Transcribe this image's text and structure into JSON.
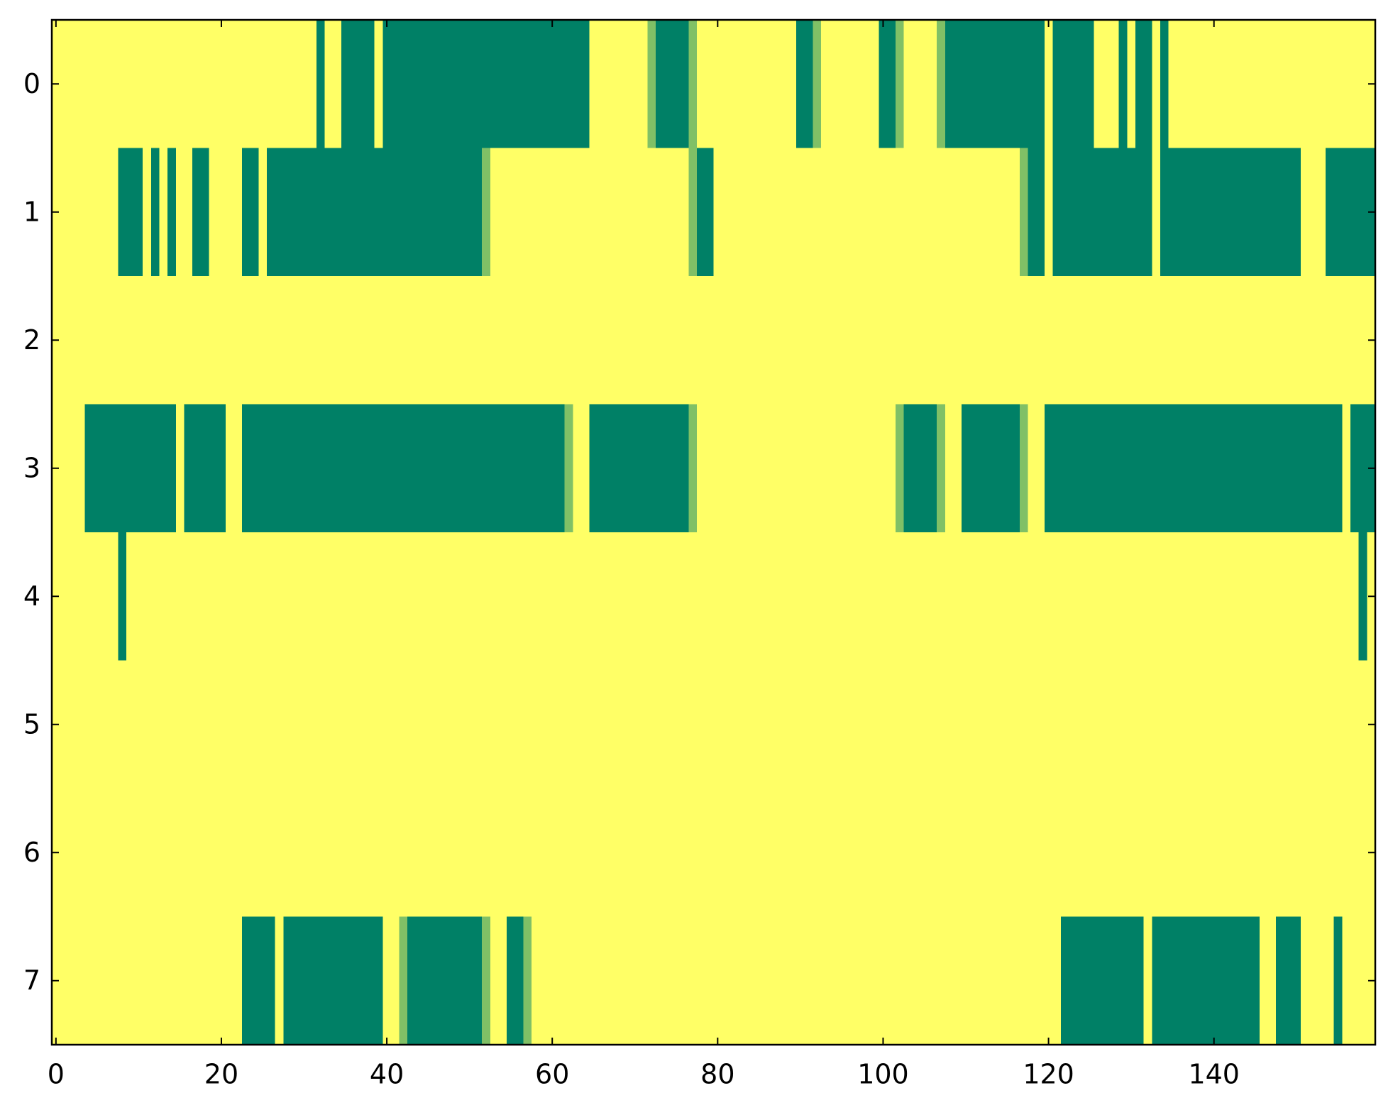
{
  "chart_data": {
    "type": "heatmap",
    "colormap": [
      "#008066",
      "#ffff66"
    ],
    "xlim": [
      -0.5,
      159.5
    ],
    "ylim": [
      7.5,
      -0.5
    ],
    "xticks": [
      0,
      20,
      40,
      60,
      80,
      100,
      120,
      140
    ],
    "yticks": [
      0,
      1,
      2,
      3,
      4,
      5,
      6,
      7
    ],
    "z": [
      [
        1,
        1,
        1,
        1,
        1,
        1,
        1,
        1,
        1,
        1,
        1,
        1,
        1,
        1,
        1,
        1,
        1,
        1,
        1,
        1,
        1,
        1,
        1,
        1,
        1,
        1,
        1,
        1,
        1,
        1,
        1,
        1,
        0,
        1,
        1,
        0,
        0,
        0,
        0,
        1,
        0,
        0,
        0,
        0,
        0,
        0,
        0,
        0,
        0,
        0,
        0,
        0,
        0,
        0,
        0,
        0,
        0,
        0,
        0,
        0,
        0,
        0,
        0,
        0,
        0,
        1,
        1,
        1,
        1,
        1,
        1,
        1,
        0.5,
        0,
        0,
        0,
        0,
        0.5,
        1,
        1,
        1,
        1,
        1,
        1,
        1,
        1,
        1,
        1,
        1,
        1,
        0,
        0,
        0.5,
        1,
        1,
        1,
        1,
        1,
        1,
        1,
        0,
        0,
        0.5,
        1,
        1,
        1,
        1,
        0.5,
        0,
        0,
        0,
        0,
        0,
        0,
        0,
        0,
        0,
        0,
        0,
        0,
        1,
        0,
        0,
        0,
        0,
        0,
        1,
        1,
        1,
        0,
        1,
        0,
        0,
        1,
        0,
        1,
        1,
        1,
        1,
        1,
        1,
        1,
        1,
        1,
        1,
        1,
        1,
        1,
        1,
        1,
        1,
        1,
        1,
        1,
        1,
        1,
        1,
        1,
        1,
        1
      ],
      [
        1,
        1,
        1,
        1,
        1,
        1,
        1,
        1,
        0,
        0,
        0,
        1,
        0,
        1,
        0,
        1,
        1,
        0,
        0,
        1,
        1,
        1,
        1,
        0,
        0,
        1,
        0,
        0,
        0,
        0,
        0,
        0,
        0,
        0,
        0,
        0,
        0,
        0,
        0,
        0,
        0,
        0,
        0,
        0,
        0,
        0,
        0,
        0,
        0,
        0,
        0,
        0,
        0.5,
        1,
        1,
        1,
        1,
        1,
        1,
        1,
        1,
        1,
        1,
        1,
        1,
        1,
        1,
        1,
        1,
        1,
        1,
        1,
        1,
        1,
        1,
        1,
        1,
        0.5,
        0,
        0,
        1,
        1,
        1,
        1,
        1,
        1,
        1,
        1,
        1,
        1,
        1,
        1,
        1,
        1,
        1,
        1,
        1,
        1,
        1,
        1,
        1,
        1,
        1,
        1,
        1,
        1,
        1,
        1,
        1,
        1,
        1,
        1,
        1,
        1,
        1,
        1,
        1,
        0.5,
        0,
        0,
        1,
        0,
        0,
        0,
        0,
        0,
        0,
        0,
        0,
        0,
        0,
        0,
        0,
        1,
        0,
        0,
        0,
        0,
        0,
        0,
        0,
        0,
        0,
        0,
        0,
        0,
        0,
        0,
        0,
        0,
        0,
        1,
        1,
        1,
        0,
        0,
        0,
        0,
        0,
        0
      ],
      [
        1,
        1,
        1,
        1,
        1,
        1,
        1,
        1,
        1,
        1,
        1,
        1,
        1,
        1,
        1,
        1,
        1,
        1,
        1,
        1,
        1,
        1,
        1,
        1,
        1,
        1,
        1,
        1,
        1,
        1,
        1,
        1,
        1,
        1,
        1,
        1,
        1,
        1,
        1,
        1,
        1,
        1,
        1,
        1,
        1,
        1,
        1,
        1,
        1,
        1,
        1,
        1,
        1,
        1,
        1,
        1,
        1,
        1,
        1,
        1,
        1,
        1,
        1,
        1,
        1,
        1,
        1,
        1,
        1,
        1,
        1,
        1,
        1,
        1,
        1,
        1,
        1,
        1,
        1,
        1,
        1,
        1,
        1,
        1,
        1,
        1,
        1,
        1,
        1,
        1,
        1,
        1,
        1,
        1,
        1,
        1,
        1,
        1,
        1,
        1,
        1,
        1,
        1,
        1,
        1,
        1,
        1,
        1,
        1,
        1,
        1,
        1,
        1,
        1,
        1,
        1,
        1,
        1,
        1,
        1,
        1,
        1,
        1,
        1,
        1,
        1,
        1,
        1,
        1,
        1,
        1,
        1,
        1,
        1,
        1,
        1,
        1,
        1,
        1,
        1,
        1,
        1,
        1,
        1,
        1,
        1,
        1,
        1,
        1,
        1,
        1,
        1,
        1,
        1,
        1,
        1,
        1,
        1,
        1,
        1
      ],
      [
        1,
        1,
        1,
        1,
        0,
        0,
        0,
        0,
        0,
        0,
        0,
        0,
        0,
        0,
        0,
        1,
        0,
        0,
        0,
        0,
        0,
        1,
        1,
        0,
        0,
        0,
        0,
        0,
        0,
        0,
        0,
        0,
        0,
        0,
        0,
        0,
        0,
        0,
        0,
        0,
        0,
        0,
        0,
        0,
        0,
        0,
        0,
        0,
        0,
        0,
        0,
        0,
        0,
        0,
        0,
        0,
        0,
        0,
        0,
        0,
        0,
        0,
        0.5,
        1,
        1,
        0,
        0,
        0,
        0,
        0,
        0,
        0,
        0,
        0,
        0,
        0,
        0,
        0.5,
        1,
        1,
        1,
        1,
        1,
        1,
        1,
        1,
        1,
        1,
        1,
        1,
        1,
        1,
        1,
        1,
        1,
        1,
        1,
        1,
        1,
        1,
        1,
        1,
        0.5,
        0,
        0,
        0,
        0,
        0.5,
        1,
        1,
        0,
        0,
        0,
        0,
        0,
        0,
        0,
        0.5,
        1,
        1,
        0,
        0,
        0,
        0,
        0,
        0,
        0,
        0,
        0,
        0,
        0,
        0,
        0,
        0,
        0,
        0,
        0,
        0,
        0,
        0,
        0,
        0,
        0,
        0,
        0,
        0,
        0,
        0,
        0,
        0,
        0,
        0,
        0,
        0,
        0,
        0,
        1,
        0,
        0,
        0
      ],
      [
        1,
        1,
        1,
        1,
        1,
        1,
        1,
        1,
        0,
        1,
        1,
        1,
        1,
        1,
        1,
        1,
        1,
        1,
        1,
        1,
        1,
        1,
        1,
        1,
        1,
        1,
        1,
        1,
        1,
        1,
        1,
        1,
        1,
        1,
        1,
        1,
        1,
        1,
        1,
        1,
        1,
        1,
        1,
        1,
        1,
        1,
        1,
        1,
        1,
        1,
        1,
        1,
        1,
        1,
        1,
        1,
        1,
        1,
        1,
        1,
        1,
        1,
        1,
        1,
        1,
        1,
        1,
        1,
        1,
        1,
        1,
        1,
        1,
        1,
        1,
        1,
        1,
        1,
        1,
        1,
        1,
        1,
        1,
        1,
        1,
        1,
        1,
        1,
        1,
        1,
        1,
        1,
        1,
        1,
        1,
        1,
        1,
        1,
        1,
        1,
        1,
        1,
        1,
        1,
        1,
        1,
        1,
        1,
        1,
        1,
        1,
        1,
        1,
        1,
        1,
        1,
        1,
        1,
        1,
        1,
        1,
        1,
        1,
        1,
        1,
        1,
        1,
        1,
        1,
        1,
        1,
        1,
        1,
        1,
        1,
        1,
        1,
        1,
        1,
        1,
        1,
        1,
        1,
        1,
        1,
        1,
        1,
        1,
        1,
        1,
        1,
        1,
        1,
        1,
        1,
        1,
        1,
        1,
        0,
        1
      ],
      [
        1,
        1,
        1,
        1,
        1,
        1,
        1,
        1,
        1,
        1,
        1,
        1,
        1,
        1,
        1,
        1,
        1,
        1,
        1,
        1,
        1,
        1,
        1,
        1,
        1,
        1,
        1,
        1,
        1,
        1,
        1,
        1,
        1,
        1,
        1,
        1,
        1,
        1,
        1,
        1,
        1,
        1,
        1,
        1,
        1,
        1,
        1,
        1,
        1,
        1,
        1,
        1,
        1,
        1,
        1,
        1,
        1,
        1,
        1,
        1,
        1,
        1,
        1,
        1,
        1,
        1,
        1,
        1,
        1,
        1,
        1,
        1,
        1,
        1,
        1,
        1,
        1,
        1,
        1,
        1,
        1,
        1,
        1,
        1,
        1,
        1,
        1,
        1,
        1,
        1,
        1,
        1,
        1,
        1,
        1,
        1,
        1,
        1,
        1,
        1,
        1,
        1,
        1,
        1,
        1,
        1,
        1,
        1,
        1,
        1,
        1,
        1,
        1,
        1,
        1,
        1,
        1,
        1,
        1,
        1,
        1,
        1,
        1,
        1,
        1,
        1,
        1,
        1,
        1,
        1,
        1,
        1,
        1,
        1,
        1,
        1,
        1,
        1,
        1,
        1,
        1,
        1,
        1,
        1,
        1,
        1,
        1,
        1,
        1,
        1,
        1,
        1,
        1,
        1,
        1,
        1,
        1,
        1,
        1,
        1
      ],
      [
        1,
        1,
        1,
        1,
        1,
        1,
        1,
        1,
        1,
        1,
        1,
        1,
        1,
        1,
        1,
        1,
        1,
        1,
        1,
        1,
        1,
        1,
        1,
        1,
        1,
        1,
        1,
        1,
        1,
        1,
        1,
        1,
        1,
        1,
        1,
        1,
        1,
        1,
        1,
        1,
        1,
        1,
        1,
        1,
        1,
        1,
        1,
        1,
        1,
        1,
        1,
        1,
        1,
        1,
        1,
        1,
        1,
        1,
        1,
        1,
        1,
        1,
        1,
        1,
        1,
        1,
        1,
        1,
        1,
        1,
        1,
        1,
        1,
        1,
        1,
        1,
        1,
        1,
        1,
        1,
        1,
        1,
        1,
        1,
        1,
        1,
        1,
        1,
        1,
        1,
        1,
        1,
        1,
        1,
        1,
        1,
        1,
        1,
        1,
        1,
        1,
        1,
        1,
        1,
        1,
        1,
        1,
        1,
        1,
        1,
        1,
        1,
        1,
        1,
        1,
        1,
        1,
        1,
        1,
        1,
        1,
        1,
        1,
        1,
        1,
        1,
        1,
        1,
        1,
        1,
        1,
        1,
        1,
        1,
        1,
        1,
        1,
        1,
        1,
        1,
        1,
        1,
        1,
        1,
        1,
        1,
        1,
        1,
        1,
        1,
        1,
        1,
        1,
        1,
        1,
        1,
        1,
        1,
        1,
        1
      ],
      [
        1,
        1,
        1,
        1,
        1,
        1,
        1,
        1,
        1,
        1,
        1,
        1,
        1,
        1,
        1,
        1,
        1,
        1,
        1,
        1,
        1,
        1,
        1,
        0,
        0,
        0,
        0,
        1,
        0,
        0,
        0,
        0,
        0,
        0,
        0,
        0,
        0,
        0,
        0,
        0,
        1,
        1,
        0.5,
        0,
        0,
        0,
        0,
        0,
        0,
        0,
        0,
        0,
        0.5,
        1,
        1,
        0,
        0,
        0.5,
        1,
        1,
        1,
        1,
        1,
        1,
        1,
        1,
        1,
        1,
        1,
        1,
        1,
        1,
        1,
        1,
        1,
        1,
        1,
        1,
        1,
        1,
        1,
        1,
        1,
        1,
        1,
        1,
        1,
        1,
        1,
        1,
        1,
        1,
        1,
        1,
        1,
        1,
        1,
        1,
        1,
        1,
        1,
        1,
        1,
        1,
        1,
        1,
        1,
        1,
        1,
        1,
        1,
        1,
        1,
        1,
        1,
        1,
        1,
        1,
        1,
        1,
        1,
        1,
        0,
        0,
        0,
        0,
        0,
        0,
        0,
        0,
        0,
        0,
        1,
        0,
        0,
        0,
        0,
        0,
        0,
        0,
        0,
        0,
        0,
        0,
        0,
        0,
        1,
        1,
        0,
        0,
        0,
        1,
        1,
        1,
        1,
        0,
        1,
        1,
        1,
        1
      ]
    ]
  }
}
